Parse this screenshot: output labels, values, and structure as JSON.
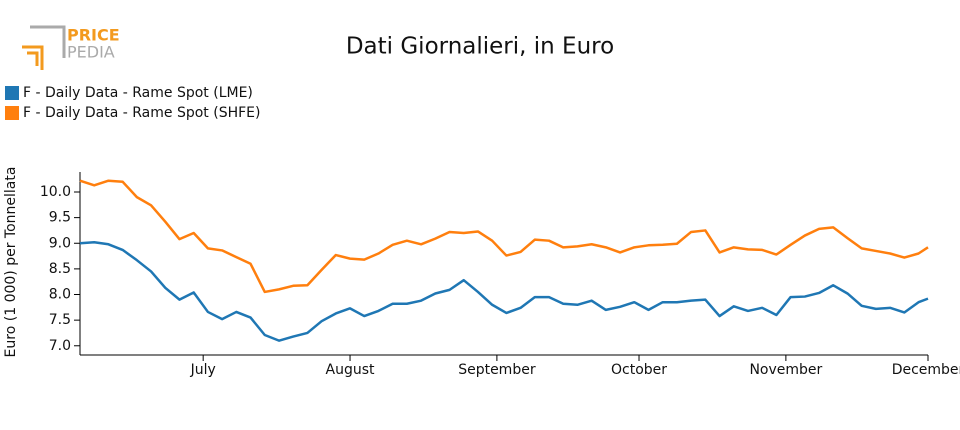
{
  "logo": {
    "top": "PRICE",
    "bottom": "PEDIA"
  },
  "chart_data": {
    "type": "line",
    "title": "Dati Giornalieri, in Euro",
    "y_label": "Euro (1 000) per Tonnellata",
    "x": [
      0,
      3,
      6,
      9,
      12,
      15,
      18,
      21,
      24,
      27,
      30,
      33,
      36,
      39,
      42,
      45,
      48,
      51,
      54,
      57,
      60,
      63,
      66,
      69,
      72,
      75,
      78,
      81,
      84,
      87,
      90,
      93,
      96,
      99,
      102,
      105,
      108,
      111,
      114,
      117,
      120,
      123,
      126,
      129,
      132,
      135,
      138,
      141,
      144,
      147,
      150,
      153,
      156,
      159,
      162,
      165,
      168,
      171,
      174,
      177,
      179
    ],
    "xlim": [
      0,
      179
    ],
    "xticks": [
      {
        "value": 26,
        "label": "July"
      },
      {
        "value": 57,
        "label": "August"
      },
      {
        "value": 88,
        "label": "September"
      },
      {
        "value": 118,
        "label": "October"
      },
      {
        "value": 149,
        "label": "November"
      },
      {
        "value": 179,
        "label": "December"
      }
    ],
    "ylim": [
      6.82,
      10.39
    ],
    "yticks": [
      {
        "value": 7,
        "label": "7.0"
      },
      7.5,
      {
        "value": 8,
        "label": "8.0"
      },
      8.5,
      {
        "value": 9,
        "label": "9.0"
      },
      9.5,
      {
        "value": 10,
        "label": "10.0"
      }
    ],
    "series": [
      {
        "name": "F - Daily Data - Rame Spot (LME)",
        "color": "#1f77b4",
        "values": [
          9.0,
          9.02,
          8.98,
          8.87,
          8.67,
          8.45,
          8.13,
          7.9,
          8.04,
          7.66,
          7.52,
          7.66,
          7.55,
          7.21,
          7.1,
          7.18,
          7.25,
          7.48,
          7.63,
          7.73,
          7.58,
          7.68,
          7.82,
          7.82,
          7.88,
          8.02,
          8.09,
          8.28,
          8.05,
          7.8,
          7.64,
          7.74,
          7.95,
          7.95,
          7.82,
          7.8,
          7.88,
          7.7,
          7.76,
          7.85,
          7.7,
          7.85,
          7.85,
          7.88,
          7.9,
          7.58,
          7.77,
          7.68,
          7.74,
          7.6,
          7.95,
          7.96,
          8.03,
          8.18,
          8.02,
          7.78,
          7.72,
          7.74,
          7.65,
          7.85,
          7.92
        ]
      },
      {
        "name": "F - Daily Data - Rame Spot (SHFE)",
        "color": "#ff7f0e",
        "values": [
          10.22,
          10.13,
          10.22,
          10.2,
          9.9,
          9.74,
          9.42,
          9.08,
          9.2,
          8.9,
          8.86,
          8.73,
          8.6,
          8.05,
          8.1,
          8.17,
          8.18,
          8.48,
          8.77,
          8.7,
          8.68,
          8.8,
          8.97,
          9.05,
          8.98,
          9.09,
          9.22,
          9.2,
          9.23,
          9.05,
          8.76,
          8.83,
          9.07,
          9.05,
          8.92,
          8.94,
          8.98,
          8.92,
          8.82,
          8.92,
          8.96,
          8.97,
          8.99,
          9.22,
          9.25,
          8.82,
          8.92,
          8.88,
          8.87,
          8.78,
          8.97,
          9.15,
          9.28,
          9.31,
          9.1,
          8.9,
          8.85,
          8.8,
          8.72,
          8.8,
          8.92
        ]
      }
    ]
  }
}
